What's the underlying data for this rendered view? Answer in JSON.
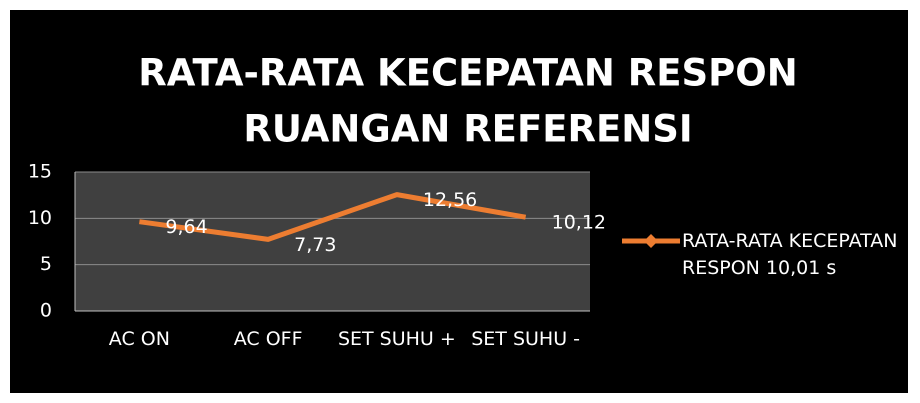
{
  "chart_data": {
    "type": "line",
    "title": [
      "RATA-RATA KECEPATAN RESPON",
      "RUANGAN REFERENSI"
    ],
    "categories": [
      "AC ON",
      "AC OFF",
      "SET SUHU +",
      "SET SUHU -"
    ],
    "series": [
      {
        "name": "RATA-RATA KECEPATAN RESPON 10,01 s",
        "color": "#ed7d31",
        "values": [
          9.64,
          7.73,
          12.56,
          10.12
        ],
        "value_labels": [
          "9,64",
          "7,73",
          "12,56",
          "10,12"
        ]
      }
    ],
    "ylim": [
      0,
      15
    ],
    "yticks": [
      0,
      5,
      10,
      15
    ],
    "grid": true,
    "legend": "right"
  }
}
